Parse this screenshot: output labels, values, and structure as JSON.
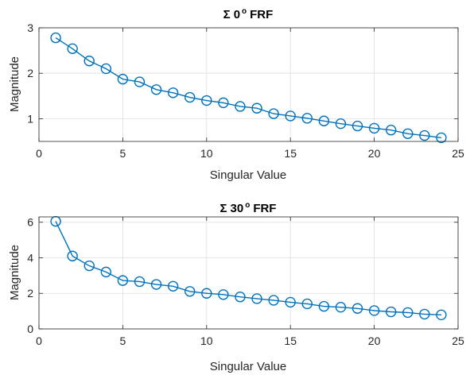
{
  "chart_data": [
    {
      "type": "line",
      "title": {
        "prefix": "Σ",
        "value": "0",
        "superscript": "o",
        "suffix": "FRF"
      },
      "xlabel": "Singular Value",
      "ylabel": "Magnitude",
      "xlim": [
        0,
        25
      ],
      "ylim": [
        0.5,
        3
      ],
      "xticks": [
        0,
        5,
        10,
        15,
        20,
        25
      ],
      "yticks": [
        1,
        2,
        3
      ],
      "grid": true,
      "marker": "circle",
      "color": "#0072BD",
      "x": [
        1,
        2,
        3,
        4,
        5,
        6,
        7,
        8,
        9,
        10,
        11,
        12,
        13,
        14,
        15,
        16,
        17,
        18,
        19,
        20,
        21,
        22,
        23,
        24
      ],
      "y": [
        2.78,
        2.54,
        2.27,
        2.1,
        1.87,
        1.81,
        1.64,
        1.57,
        1.47,
        1.4,
        1.35,
        1.27,
        1.23,
        1.11,
        1.06,
        1.01,
        0.95,
        0.89,
        0.84,
        0.79,
        0.75,
        0.67,
        0.63,
        0.58
      ]
    },
    {
      "type": "line",
      "title": {
        "prefix": "Σ",
        "value": "30",
        "superscript": "o",
        "suffix": "FRF"
      },
      "xlabel": "Singular Value",
      "ylabel": "Magnitude",
      "xlim": [
        0,
        25
      ],
      "ylim": [
        0,
        6.3
      ],
      "xticks": [
        0,
        5,
        10,
        15,
        20,
        25
      ],
      "yticks": [
        0,
        2,
        4,
        6
      ],
      "grid": true,
      "marker": "circle",
      "color": "#0072BD",
      "x": [
        1,
        2,
        3,
        4,
        5,
        6,
        7,
        8,
        9,
        10,
        11,
        12,
        13,
        14,
        15,
        16,
        17,
        18,
        19,
        20,
        21,
        22,
        23,
        24
      ],
      "y": [
        6.05,
        4.1,
        3.55,
        3.2,
        2.72,
        2.66,
        2.5,
        2.4,
        2.11,
        2.0,
        1.93,
        1.8,
        1.7,
        1.61,
        1.5,
        1.41,
        1.27,
        1.22,
        1.15,
        1.03,
        0.96,
        0.92,
        0.83,
        0.79
      ]
    }
  ]
}
